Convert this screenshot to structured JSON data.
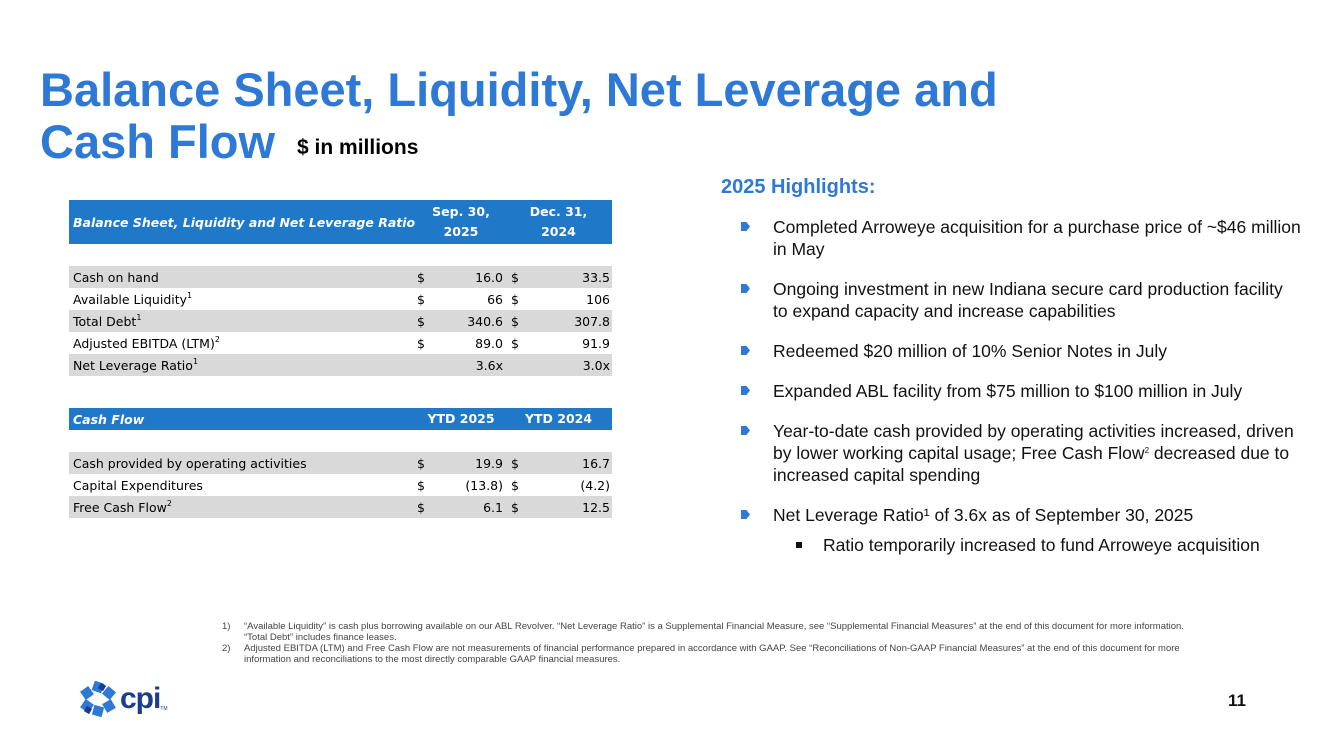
{
  "title": {
    "line1": "Balance Sheet, Liquidity, Net Leverage and",
    "line2": "Cash Flow",
    "unit": "$ in millions"
  },
  "balance_table": {
    "header": {
      "label": "Balance Sheet, Liquidity and Net Leverage Ratio",
      "col1_line1": "Sep. 30,",
      "col1_line2": "2025",
      "col2_line1": "Dec. 31,",
      "col2_line2": "2024"
    },
    "rows": [
      {
        "label": "Cash on hand",
        "sup": "",
        "d1": "$",
        "v1": "16.0",
        "d2": "$",
        "v2": "33.5"
      },
      {
        "label": "Available Liquidity",
        "sup": "1",
        "d1": "$",
        "v1": "66",
        "d2": "$",
        "v2": "106"
      },
      {
        "label": "Total Debt",
        "sup": "1",
        "d1": "$",
        "v1": "340.6",
        "d2": "$",
        "v2": "307.8"
      },
      {
        "label": "Adjusted EBITDA (LTM)",
        "sup": "2",
        "d1": "$",
        "v1": "89.0",
        "d2": "$",
        "v2": "91.9"
      },
      {
        "label": "Net Leverage Ratio",
        "sup": "1",
        "v1": "3.6x",
        "v2": "3.0x"
      }
    ]
  },
  "cashflow_table": {
    "header": {
      "label": "Cash Flow",
      "col1": "YTD 2025",
      "col2": "YTD 2024"
    },
    "rows": [
      {
        "label": "Cash provided by operating activities",
        "sup": "",
        "d1": "$",
        "v1": "19.9",
        "d2": "$",
        "v2": "16.7"
      },
      {
        "label": "Capital Expenditures",
        "sup": "",
        "d1": "$",
        "v1": "(13.8)",
        "d2": "$",
        "v2": "(4.2)"
      },
      {
        "label": "Free Cash Flow",
        "sup": "2",
        "d1": "$",
        "v1": "6.1",
        "d2": "$",
        "v2": "12.5"
      }
    ]
  },
  "highlights": {
    "title": "2025 Highlights:",
    "items": [
      "Completed Arroweye acquisition for a purchase price of ~$46 million in May",
      "Ongoing investment in new Indiana secure card production facility to expand capacity and increase capabilities",
      "Redeemed $20 million of 10% Senior Notes in July",
      "Expanded ABL facility from $75 million to $100 million in July",
      "Year-to-date cash provided by operating activities increased, driven by lower working capital usage; Free Cash Flow",
      "Net Leverage Ratio¹ of 3.6x as of September 30, 2025"
    ],
    "item5_sup": "2",
    "item5_tail": " decreased due to increased capital spending",
    "sub_item": "Ratio temporarily increased to fund Arroweye acquisition"
  },
  "footnotes": [
    {
      "num": "1)",
      "text": "“Available Liquidity” is cash plus borrowing available on our ABL Revolver. “Net Leverage Ratio” is a Supplemental Financial Measure, see “Supplemental Financial Measures” at the end of this document for more information.  “Total Debt” includes finance leases."
    },
    {
      "num": "2)",
      "text": "Adjusted EBITDA (LTM) and Free Cash Flow are not measurements of financial performance prepared in accordance with GAAP. See “Reconciliations of Non-GAAP Financial Measures” at the end of this document for more information and reconciliations to the most directly comparable GAAP financial measures."
    }
  ],
  "logo": {
    "text": "cpi",
    "tm": "TM"
  },
  "page_number": "11",
  "colors": {
    "accent": "#2e78d6",
    "table_header": "#1f78c8",
    "row_shade": "#d9d9d9",
    "logo": "#1a3d8f"
  }
}
